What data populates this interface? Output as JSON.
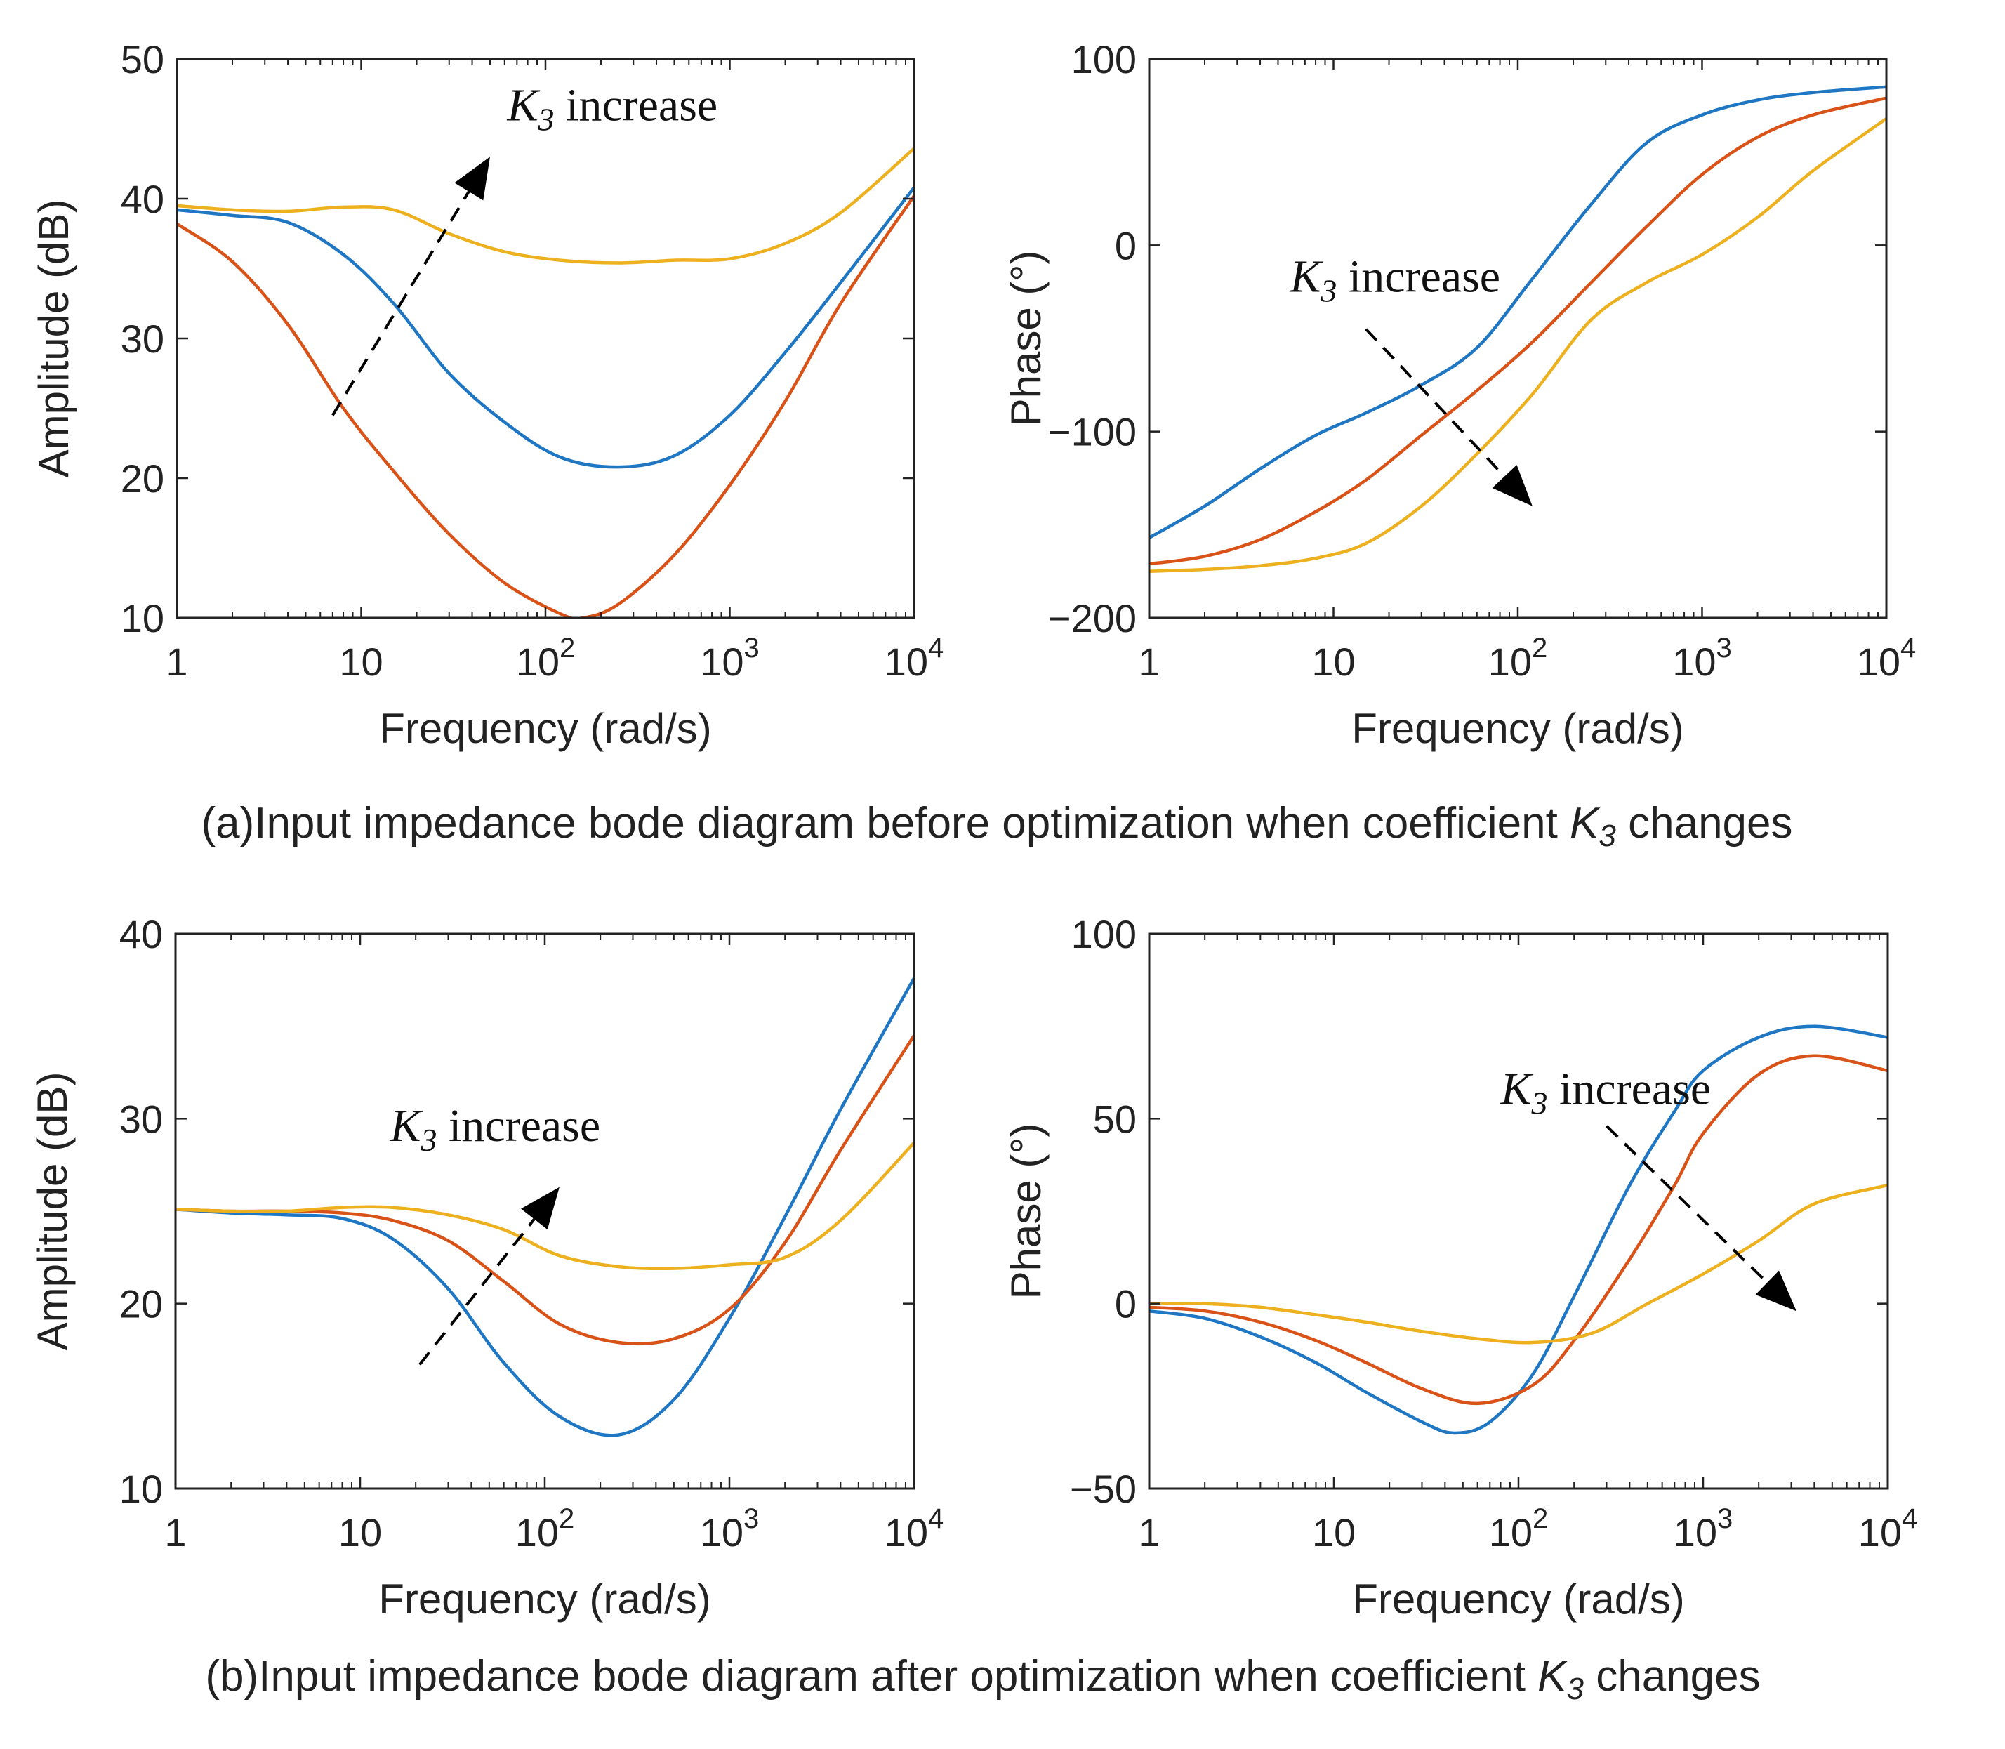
{
  "captions": {
    "a": {
      "prefix": "(a)Input impedance bode diagram before optimization when coefficient ",
      "k_sym": "K",
      "k_sub": "3",
      "suffix": " changes"
    },
    "b": {
      "prefix": "(b)Input impedance bode diagram after optimization when coefficient ",
      "k_sym": "K",
      "k_sub": "3",
      "suffix": " changes"
    }
  },
  "colors": {
    "series1": "#1f77c4",
    "series2": "#d95319",
    "series3": "#edb120",
    "axis": "#222222",
    "arrow": "#000000"
  },
  "chart_data": [
    {
      "id": "a-amplitude",
      "type": "line",
      "xscale": "log",
      "xlim": [
        1,
        10000
      ],
      "ylim": [
        10,
        50
      ],
      "xlabel": "Frequency (rad/s)",
      "ylabel": "Amplitude (dB)",
      "xticks": [
        {
          "base": "1",
          "exp": ""
        },
        {
          "base": "10",
          "exp": ""
        },
        {
          "base": "10",
          "exp": "2"
        },
        {
          "base": "10",
          "exp": "3"
        },
        {
          "base": "10",
          "exp": "4"
        }
      ],
      "yticks": [
        "10",
        "20",
        "30",
        "40",
        "50"
      ],
      "annotation": {
        "symbol": "K",
        "sub": "3",
        "text": " increase",
        "at": [
          62,
          45.6
        ],
        "arrow_from": [
          7,
          24.5
        ],
        "arrow_to": [
          50,
          43
        ]
      },
      "series": [
        {
          "name": "series1",
          "x": [
            1,
            2,
            4,
            8,
            15,
            30,
            60,
            120,
            250,
            500,
            1000,
            2000,
            4000,
            10000
          ],
          "y": [
            39.2,
            38.8,
            38.3,
            36.0,
            32.5,
            27.5,
            24.0,
            21.5,
            20.8,
            21.6,
            24.5,
            29.0,
            34.0,
            40.8
          ]
        },
        {
          "name": "series2",
          "x": [
            1,
            2,
            4,
            8,
            15,
            30,
            60,
            120,
            160,
            250,
            500,
            1000,
            2000,
            4000,
            10000
          ],
          "y": [
            38.2,
            35.5,
            31.0,
            25.0,
            20.5,
            16.0,
            12.5,
            10.3,
            10.0,
            11.0,
            14.5,
            19.5,
            25.5,
            32.5,
            40.2
          ]
        },
        {
          "name": "series3",
          "x": [
            1,
            2,
            4,
            8,
            15,
            30,
            60,
            120,
            250,
            500,
            1000,
            2000,
            4000,
            10000
          ],
          "y": [
            39.5,
            39.2,
            39.1,
            39.4,
            39.2,
            37.5,
            36.2,
            35.6,
            35.4,
            35.6,
            35.7,
            36.8,
            39.0,
            43.6
          ]
        }
      ]
    },
    {
      "id": "a-phase",
      "type": "line",
      "xscale": "log",
      "xlim": [
        1,
        10000
      ],
      "ylim": [
        -200,
        100
      ],
      "xlabel": "Frequency (rad/s)",
      "ylabel": "Phase (°)",
      "xticks": [
        {
          "base": "1",
          "exp": ""
        },
        {
          "base": "10",
          "exp": ""
        },
        {
          "base": "10",
          "exp": "2"
        },
        {
          "base": "10",
          "exp": "3"
        },
        {
          "base": "10",
          "exp": "4"
        }
      ],
      "yticks": [
        "−200",
        "−100",
        "0",
        "100"
      ],
      "annotation": {
        "symbol": "K",
        "sub": "3",
        "text": " increase",
        "at": [
          5.8,
          -25
        ],
        "arrow_from": [
          15,
          -45
        ],
        "arrow_to": [
          120,
          -140
        ]
      },
      "series": [
        {
          "name": "series1",
          "x": [
            1,
            2,
            4,
            8,
            15,
            30,
            60,
            120,
            250,
            500,
            1000,
            2000,
            4000,
            10000
          ],
          "y": [
            -157,
            -140,
            -120,
            -102,
            -90,
            -75,
            -55,
            -18,
            22,
            55,
            70,
            78,
            82,
            85
          ]
        },
        {
          "name": "series2",
          "x": [
            1,
            2,
            4,
            8,
            15,
            30,
            60,
            120,
            250,
            500,
            1000,
            2000,
            4000,
            10000
          ],
          "y": [
            -171,
            -167,
            -158,
            -143,
            -126,
            -102,
            -78,
            -52,
            -20,
            10,
            38,
            58,
            70,
            79
          ]
        },
        {
          "name": "series3",
          "x": [
            1,
            2,
            4,
            8,
            15,
            30,
            60,
            120,
            250,
            500,
            1000,
            2000,
            4000,
            10000
          ],
          "y": [
            -175,
            -174,
            -172,
            -168,
            -160,
            -140,
            -112,
            -80,
            -40,
            -20,
            -5,
            15,
            40,
            68
          ]
        }
      ]
    },
    {
      "id": "b-amplitude",
      "type": "line",
      "xscale": "log",
      "xlim": [
        1,
        10000
      ],
      "ylim": [
        10,
        40
      ],
      "xlabel": "Frequency (rad/s)",
      "ylabel": "Amplitude (dB)",
      "xticks": [
        {
          "base": "1",
          "exp": ""
        },
        {
          "base": "10",
          "exp": ""
        },
        {
          "base": "10",
          "exp": "2"
        },
        {
          "base": "10",
          "exp": "3"
        },
        {
          "base": "10",
          "exp": "4"
        }
      ],
      "yticks": [
        "10",
        "20",
        "30",
        "40"
      ],
      "annotation": {
        "symbol": "K",
        "sub": "3",
        "text": " increase",
        "at": [
          14.5,
          28.8
        ],
        "arrow_from": [
          21,
          16.7
        ],
        "arrow_to": [
          120,
          26.3
        ]
      },
      "series": [
        {
          "name": "series1",
          "x": [
            1,
            2,
            4,
            8,
            15,
            30,
            60,
            120,
            250,
            500,
            1000,
            2000,
            4000,
            10000
          ],
          "y": [
            25.1,
            24.9,
            24.8,
            24.6,
            23.5,
            20.8,
            16.8,
            13.9,
            12.9,
            14.8,
            19.2,
            24.7,
            30.5,
            37.6
          ]
        },
        {
          "name": "series2",
          "x": [
            1,
            2,
            4,
            8,
            15,
            30,
            60,
            120,
            250,
            500,
            1000,
            2000,
            4000,
            10000
          ],
          "y": [
            25.1,
            25.0,
            25.0,
            24.9,
            24.5,
            23.4,
            21.2,
            18.9,
            17.9,
            18.1,
            19.7,
            23.3,
            28.3,
            34.5
          ]
        },
        {
          "name": "series3",
          "x": [
            1,
            2,
            4,
            8,
            15,
            30,
            60,
            120,
            250,
            500,
            1000,
            2000,
            4000,
            10000
          ],
          "y": [
            25.1,
            25.0,
            25.0,
            25.2,
            25.2,
            24.8,
            24.0,
            22.6,
            22.0,
            21.9,
            22.1,
            22.5,
            24.5,
            28.7
          ]
        }
      ]
    },
    {
      "id": "b-phase",
      "type": "line",
      "xscale": "log",
      "xlim": [
        1,
        10000
      ],
      "ylim": [
        -50,
        100
      ],
      "xlabel": "Frequency (rad/s)",
      "ylabel": "Phase (°)",
      "xticks": [
        {
          "base": "1",
          "exp": ""
        },
        {
          "base": "10",
          "exp": ""
        },
        {
          "base": "10",
          "exp": "2"
        },
        {
          "base": "10",
          "exp": "3"
        },
        {
          "base": "10",
          "exp": "4"
        }
      ],
      "yticks": [
        "−50",
        "0",
        "50",
        "100"
      ],
      "annotation": {
        "symbol": "K",
        "sub": "3",
        "text": " increase",
        "at": [
          80,
          54
        ],
        "arrow_from": [
          300,
          48
        ],
        "arrow_to": [
          3200,
          -2
        ]
      },
      "series": [
        {
          "name": "series1",
          "x": [
            1,
            2,
            4,
            8,
            15,
            30,
            45,
            70,
            120,
            200,
            400,
            700,
            1000,
            2000,
            4000,
            10000
          ],
          "y": [
            -2,
            -4,
            -9,
            -16,
            -24,
            -32,
            -35,
            -32,
            -19,
            2,
            32,
            52,
            63,
            72,
            75,
            72
          ]
        },
        {
          "name": "series2",
          "x": [
            1,
            2,
            4,
            8,
            15,
            30,
            60,
            120,
            200,
            400,
            700,
            1000,
            2000,
            4000,
            10000
          ],
          "y": [
            -1,
            -2,
            -5,
            -10,
            -16,
            -23,
            -27,
            -22,
            -10,
            12,
            32,
            46,
            62,
            67,
            63
          ]
        },
        {
          "name": "series3",
          "x": [
            1,
            2,
            4,
            8,
            15,
            30,
            60,
            120,
            250,
            500,
            1000,
            2000,
            4000,
            10000
          ],
          "y": [
            0,
            0,
            -1,
            -3,
            -5,
            -7.5,
            -9.5,
            -10.5,
            -8,
            0,
            8,
            17,
            27,
            32
          ]
        }
      ]
    }
  ]
}
